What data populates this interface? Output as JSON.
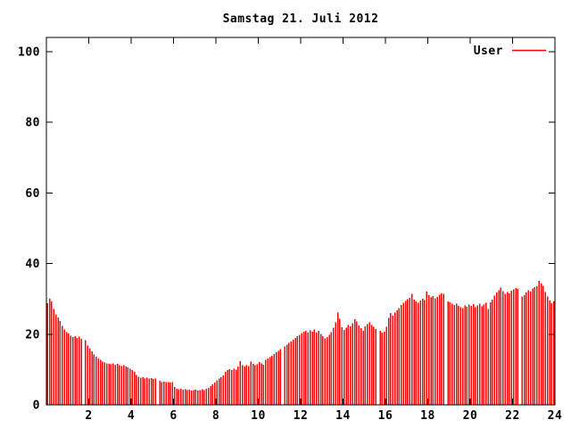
{
  "chart_data": {
    "type": "bar",
    "title": "Samstag 21. Juli 2012",
    "series": [
      {
        "name": "User",
        "color": "#ff0000"
      }
    ],
    "legend_position": "top-right",
    "xlabel": "",
    "ylabel": "",
    "xlim": [
      0,
      24
    ],
    "ylim": [
      0,
      100
    ],
    "x_ticks": [
      2,
      4,
      6,
      8,
      10,
      12,
      14,
      16,
      18,
      20,
      22,
      24
    ],
    "y_ticks": [
      0,
      20,
      40,
      60,
      80,
      100
    ],
    "grid": false,
    "background_color": "#ffffff",
    "axis_color": "#000000",
    "text_color": "#000000",
    "x_unit": "hour-of-day",
    "x_first": 0.05,
    "x_step": 0.1,
    "values": [
      28.8,
      30.1,
      29.3,
      27.2,
      25.5,
      24.7,
      23.8,
      22.3,
      21.4,
      20.6,
      20.2,
      19.6,
      19.2,
      19.4,
      18.9,
      19.3,
      18.7,
      0,
      18.3,
      16.8,
      15.9,
      15.1,
      14.3,
      13.6,
      13.1,
      12.7,
      12.2,
      12.0,
      11.8,
      11.6,
      11.5,
      11.7,
      11.4,
      11.6,
      11.2,
      11.0,
      11.3,
      10.9,
      10.6,
      10.2,
      9.8,
      9.4,
      8.4,
      7.9,
      7.7,
      7.8,
      7.5,
      7.7,
      7.4,
      7.6,
      7.3,
      7.5,
      0,
      6.8,
      6.5,
      6.6,
      6.4,
      6.5,
      6.3,
      6.4,
      5.1,
      4.6,
      4.4,
      4.5,
      4.3,
      4.4,
      4.2,
      4.3,
      4.1,
      4.2,
      4.3,
      4.1,
      4.2,
      4.4,
      4.2,
      4.5,
      4.8,
      5.3,
      5.8,
      6.3,
      6.9,
      7.4,
      7.8,
      8.3,
      9.4,
      9.9,
      10.1,
      9.8,
      10.2,
      10.0,
      10.9,
      12.4,
      11.3,
      10.9,
      11.2,
      11.0,
      12.2,
      11.6,
      11.2,
      11.5,
      12.1,
      11.7,
      11.4,
      12.7,
      13.1,
      13.5,
      13.9,
      14.4,
      14.9,
      15.3,
      15.8,
      0,
      16.6,
      17.0,
      17.5,
      17.9,
      18.4,
      18.9,
      19.4,
      19.8,
      20.3,
      20.7,
      21.0,
      20.5,
      21.1,
      20.7,
      21.3,
      20.4,
      21.0,
      20.1,
      19.4,
      18.8,
      19.2,
      19.8,
      20.6,
      21.9,
      23.3,
      26.1,
      24.4,
      22.0,
      21.2,
      21.8,
      22.6,
      22.2,
      23.1,
      24.3,
      23.6,
      22.5,
      21.7,
      20.9,
      22.2,
      22.8,
      23.3,
      22.6,
      22.1,
      21.5,
      0,
      21.0,
      20.4,
      20.7,
      22.1,
      24.6,
      26.0,
      25.2,
      26.1,
      26.8,
      27.4,
      28.3,
      28.9,
      29.4,
      29.9,
      30.3,
      31.5,
      29.8,
      29.3,
      28.9,
      29.6,
      30.1,
      29.7,
      32.1,
      31.0,
      30.4,
      30.8,
      30.2,
      30.6,
      31.2,
      31.6,
      31.4,
      0,
      29.3,
      29.0,
      28.7,
      28.3,
      28.6,
      28.0,
      27.7,
      27.4,
      28.2,
      27.8,
      28.4,
      28.0,
      28.5,
      27.6,
      28.2,
      28.7,
      27.9,
      28.4,
      28.9,
      27.2,
      29.1,
      29.8,
      30.9,
      31.8,
      32.4,
      33.2,
      32.2,
      31.4,
      32.0,
      31.6,
      32.3,
      32.7,
      33.1,
      32.8,
      0,
      30.7,
      31.0,
      31.8,
      32.5,
      32.1,
      32.9,
      33.3,
      33.6,
      35.1,
      34.3,
      33.7,
      32.0,
      30.7,
      29.5,
      28.8,
      29.3
    ]
  }
}
